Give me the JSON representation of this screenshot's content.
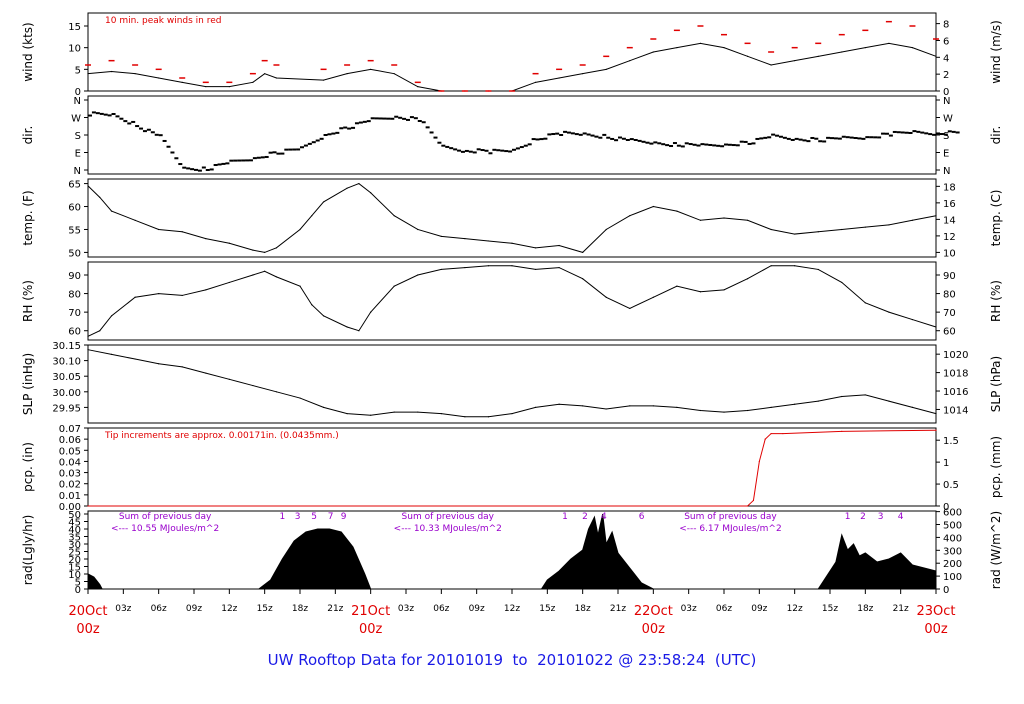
{
  "footer_title": "UW Rooftop Data for 20101019  to  20101022 @ 23:58:24  (UTC)",
  "colors": {
    "red": "#e00000",
    "purple": "#9900cc",
    "blue": "#1a1ae6",
    "black": "#000000"
  },
  "chart_data": [
    {
      "id": "wind",
      "type": "line",
      "ylabel_left": "wind (kts)",
      "ylabel_right": "wind (m/s)",
      "ylim": [
        0,
        18
      ],
      "ticks_left": [
        0,
        5,
        10,
        15
      ],
      "ticks_right": [
        0,
        2,
        4,
        6,
        8
      ],
      "annotation": "10 min. peak winds in red",
      "series": [
        {
          "role": "mean",
          "x": [
            0,
            2,
            4,
            6,
            8,
            10,
            12,
            14,
            15,
            16,
            20,
            22,
            24,
            26,
            28,
            30,
            32,
            34,
            36,
            38,
            40,
            42,
            44,
            46,
            48,
            50,
            52,
            54,
            56,
            58,
            60,
            62,
            64,
            66,
            68,
            70,
            72
          ],
          "y": [
            4,
            4.5,
            4,
            3,
            2,
            1,
            1,
            2,
            4,
            3,
            2.5,
            4,
            5,
            4,
            1,
            0,
            0,
            0,
            0,
            2,
            3,
            4,
            5,
            7,
            9,
            10,
            11,
            10,
            8,
            6,
            7,
            8,
            9,
            10,
            11,
            10,
            8
          ]
        },
        {
          "role": "peak",
          "x": [
            0,
            2,
            4,
            6,
            8,
            10,
            12,
            14,
            15,
            16,
            20,
            22,
            24,
            26,
            28,
            30,
            32,
            34,
            36,
            38,
            40,
            42,
            44,
            46,
            48,
            50,
            52,
            54,
            56,
            58,
            60,
            62,
            64,
            66,
            68,
            70,
            72
          ],
          "y": [
            6,
            7,
            6,
            5,
            3,
            2,
            2,
            4,
            7,
            6,
            5,
            6,
            7,
            6,
            2,
            0,
            0,
            0,
            0,
            4,
            5,
            6,
            8,
            10,
            12,
            14,
            15,
            13,
            11,
            9,
            10,
            11,
            13,
            14,
            16,
            15,
            12
          ]
        }
      ]
    },
    {
      "id": "dir",
      "type": "scatter",
      "ylabel_left": "dir.",
      "ylabel_right": "dir.",
      "yticks": [
        "N",
        "W",
        "S",
        "E",
        "N"
      ],
      "series": [
        {
          "x": [
            0,
            2,
            4,
            6,
            8,
            10,
            12,
            14,
            16,
            18,
            20,
            22,
            24,
            26,
            28,
            30,
            32,
            34,
            36,
            38,
            40,
            42,
            44,
            46,
            48,
            50,
            52,
            54,
            56,
            58,
            60,
            62,
            64,
            66,
            68,
            70,
            72
          ],
          "y": [
            290,
            285,
            230,
            170,
            10,
            5,
            40,
            60,
            90,
            110,
            180,
            220,
            260,
            275,
            260,
            120,
            100,
            95,
            100,
            160,
            190,
            185,
            170,
            150,
            140,
            130,
            125,
            130,
            140,
            175,
            160,
            155,
            165,
            170,
            185,
            195,
            190
          ]
        }
      ]
    },
    {
      "id": "temp",
      "type": "line",
      "ylabel_left": "temp. (F)",
      "ylabel_right": "temp. (C)",
      "ylim": [
        49,
        66
      ],
      "ticks_left": [
        50,
        55,
        60,
        65
      ],
      "ticks_right": [
        10,
        12,
        14,
        16,
        18
      ],
      "series": [
        {
          "x": [
            0,
            1,
            2,
            4,
            6,
            8,
            10,
            12,
            14,
            15,
            16,
            18,
            19,
            20,
            22,
            23,
            24,
            26,
            28,
            30,
            32,
            34,
            36,
            38,
            40,
            42,
            44,
            46,
            48,
            50,
            52,
            54,
            56,
            58,
            60,
            62,
            64,
            66,
            68,
            70,
            72
          ],
          "y": [
            64.5,
            62,
            59,
            57,
            55,
            54.5,
            53,
            52,
            50.5,
            50,
            51,
            55,
            58,
            61,
            64,
            65,
            63,
            58,
            55,
            53.5,
            53,
            52.5,
            52,
            51,
            51.5,
            50,
            55,
            58,
            60,
            59,
            57,
            57.5,
            57,
            55,
            54,
            54.5,
            55,
            55.5,
            56,
            57,
            58
          ]
        }
      ]
    },
    {
      "id": "rh",
      "type": "line",
      "ylabel_left": "RH (%)",
      "ylabel_right": "RH (%)",
      "ylim": [
        55,
        97
      ],
      "ticks_left": [
        60,
        70,
        80,
        90
      ],
      "ticks_right": [
        60,
        70,
        80,
        90
      ],
      "series": [
        {
          "x": [
            0,
            1,
            2,
            4,
            6,
            8,
            10,
            12,
            14,
            15,
            16,
            18,
            19,
            20,
            22,
            23,
            24,
            26,
            28,
            30,
            32,
            34,
            36,
            38,
            40,
            42,
            44,
            46,
            48,
            50,
            52,
            54,
            56,
            58,
            60,
            62,
            64,
            66,
            68,
            70,
            72
          ],
          "y": [
            57,
            60,
            68,
            78,
            80,
            79,
            82,
            86,
            90,
            92,
            89,
            84,
            74,
            68,
            62,
            60,
            70,
            84,
            90,
            93,
            94,
            95,
            95,
            93,
            94,
            88,
            78,
            72,
            78,
            84,
            81,
            82,
            88,
            95,
            95,
            93,
            86,
            75,
            70,
            66,
            62
          ]
        }
      ]
    },
    {
      "id": "slp",
      "type": "line",
      "ylabel_left": "SLP (inHg)",
      "ylabel_right": "SLP (hPa)",
      "ylim": [
        29.9,
        30.15
      ],
      "ticks_left": [
        29.95,
        30.0,
        30.05,
        30.1,
        30.15
      ],
      "tick_labels_left": [
        "29.95",
        "30.00",
        "30.05",
        "30.10",
        "30.15"
      ],
      "ticks_right": [
        1014,
        1016,
        1018,
        1020
      ],
      "series": [
        {
          "x": [
            0,
            2,
            4,
            6,
            8,
            10,
            12,
            14,
            16,
            18,
            20,
            22,
            24,
            26,
            28,
            30,
            32,
            34,
            36,
            38,
            40,
            42,
            44,
            46,
            48,
            50,
            52,
            54,
            56,
            58,
            60,
            62,
            64,
            66,
            68,
            70,
            72
          ],
          "y": [
            30.135,
            30.12,
            30.105,
            30.09,
            30.08,
            30.06,
            30.04,
            30.02,
            30.0,
            29.98,
            29.95,
            29.93,
            29.925,
            29.935,
            29.935,
            29.93,
            29.92,
            29.92,
            29.93,
            29.95,
            29.96,
            29.955,
            29.945,
            29.955,
            29.955,
            29.95,
            29.94,
            29.935,
            29.94,
            29.95,
            29.96,
            29.97,
            29.985,
            29.99,
            29.97,
            29.95,
            29.93
          ]
        }
      ]
    },
    {
      "id": "pcp",
      "type": "line",
      "ylabel_left": "pcp. (in)",
      "ylabel_right": "pcp. (mm)",
      "ylim": [
        0,
        0.07
      ],
      "ticks_left": [
        0,
        0.01,
        0.02,
        0.03,
        0.04,
        0.05,
        0.06,
        0.07
      ],
      "tick_labels_left": [
        "0.00",
        "0.01",
        "0.02",
        "0.03",
        "0.04",
        "0.05",
        "0.06",
        "0.07"
      ],
      "ticks_right": [
        0,
        0.5,
        1,
        1.5
      ],
      "tick_labels_right": [
        "0",
        "0.5",
        "1",
        "1.5"
      ],
      "annotation": "Tip increments are approx. 0.00171in. (0.0435mm.)",
      "series": [
        {
          "x": [
            0,
            56,
            56.5,
            57,
            57.5,
            58,
            59,
            64,
            72
          ],
          "y": [
            0,
            0,
            0.005,
            0.04,
            0.06,
            0.065,
            0.065,
            0.067,
            0.068
          ]
        }
      ]
    },
    {
      "id": "rad",
      "type": "area",
      "ylabel_left": "rad(Lgly/hr)",
      "ylabel_right": "rad (W/m^2)",
      "ylim": [
        0,
        52
      ],
      "ticks_left": [
        0,
        5,
        10,
        15,
        20,
        25,
        30,
        35,
        40,
        45,
        50
      ],
      "ticks_right": [
        0,
        100,
        200,
        300,
        400,
        500,
        600
      ],
      "annotations": [
        {
          "line1": "Sum of previous day",
          "line2": "<--- 10.55 MJoules/m^2",
          "x": 4
        },
        {
          "line1": "Sum of previous day",
          "line2": "<--- 10.33 MJoules/m^2",
          "x": 28
        },
        {
          "line1": "Sum of previous day",
          "line2": "<--- 6.17 MJoules/m^2",
          "x": 52
        }
      ],
      "hour_markers": [
        {
          "label": "1",
          "x": 16.5
        },
        {
          "label": "3",
          "x": 17.8
        },
        {
          "label": "5",
          "x": 19.2
        },
        {
          "label": "7",
          "x": 20.6
        },
        {
          "label": "9",
          "x": 21.7
        },
        {
          "label": "1",
          "x": 40.5
        },
        {
          "label": "2",
          "x": 42.2
        },
        {
          "label": "4",
          "x": 43.8
        },
        {
          "label": "6",
          "x": 47
        },
        {
          "label": "1",
          "x": 64.5
        },
        {
          "label": "2",
          "x": 65.8
        },
        {
          "label": "3",
          "x": 67.3
        },
        {
          "label": "4",
          "x": 69
        }
      ],
      "series": [
        {
          "x": [
            0,
            0.5,
            1,
            1.2,
            14.5,
            15.5,
            16.5,
            17.5,
            18.5,
            19.5,
            20.5,
            21.5,
            22.5,
            23.5,
            24,
            38.5,
            39,
            40,
            41,
            42,
            42.5,
            43,
            43.3,
            43.7,
            44,
            44.5,
            45,
            46,
            47,
            47.5,
            48,
            62,
            62.5,
            63,
            63.5,
            64,
            64.5,
            65,
            65.5,
            66,
            67,
            68,
            69,
            70,
            71,
            72
          ],
          "y": [
            10,
            8,
            3,
            0,
            0,
            6,
            20,
            32,
            38,
            40,
            40,
            38,
            28,
            10,
            0,
            0,
            6,
            12,
            20,
            26,
            40,
            48,
            36,
            50,
            30,
            38,
            24,
            14,
            4,
            2,
            0,
            0,
            6,
            12,
            18,
            36,
            26,
            30,
            22,
            24,
            18,
            20,
            24,
            16,
            14,
            12
          ]
        }
      ]
    }
  ],
  "x_axis": {
    "hour_labels": [
      "03z",
      "06z",
      "09z",
      "12z",
      "15z",
      "18z",
      "21z"
    ],
    "day_labels": [
      {
        "line1": "20Oct",
        "line2": "00z",
        "x": 0
      },
      {
        "line1": "21Oct",
        "line2": "00z",
        "x": 24
      },
      {
        "line1": "22Oct",
        "line2": "00z",
        "x": 48
      },
      {
        "line1": "23Oct",
        "line2": "00z",
        "x": 72
      }
    ]
  }
}
